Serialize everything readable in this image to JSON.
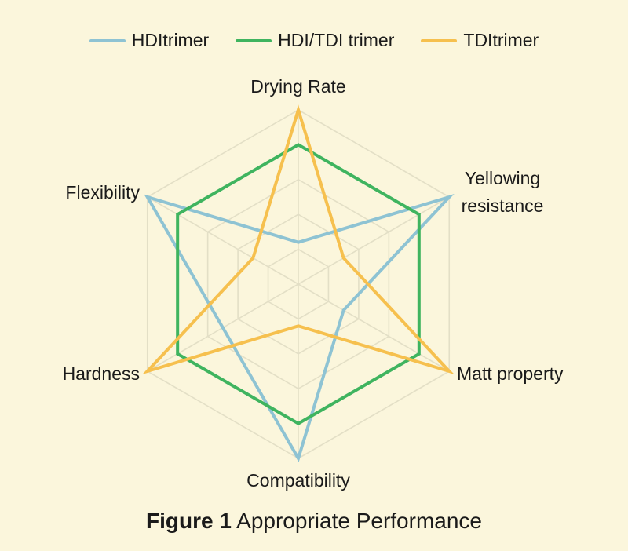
{
  "chart_data": {
    "type": "radar",
    "axes": [
      "Drying Rate",
      "Yellowing resistance",
      "Matt property",
      "Compatibility",
      "Hardness",
      "Flexibility"
    ],
    "axis_label_lines": [
      [
        "Drying Rate"
      ],
      [
        "Yellowing",
        "resistance"
      ],
      [
        "Matt property"
      ],
      [
        "Compatibility"
      ],
      [
        "Hardness"
      ],
      [
        "Flexibility"
      ]
    ],
    "range": [
      0,
      5
    ],
    "rings": 5,
    "series": [
      {
        "name": "HDItrimer",
        "color": "#8ec3d3",
        "values": [
          1.2,
          5,
          1.5,
          5,
          2.5,
          5
        ]
      },
      {
        "name": "HDI/TDI trimer",
        "color": "#3fb45f",
        "values": [
          4,
          4,
          4,
          4,
          4,
          4
        ]
      },
      {
        "name": "TDItrimer",
        "color": "#f6c04e",
        "values": [
          5,
          1.5,
          5,
          1.2,
          5,
          1.5
        ]
      }
    ],
    "grid": true,
    "legend_position": "top"
  },
  "caption": {
    "label": "Figure 1",
    "text": "Appropriate Performance"
  }
}
